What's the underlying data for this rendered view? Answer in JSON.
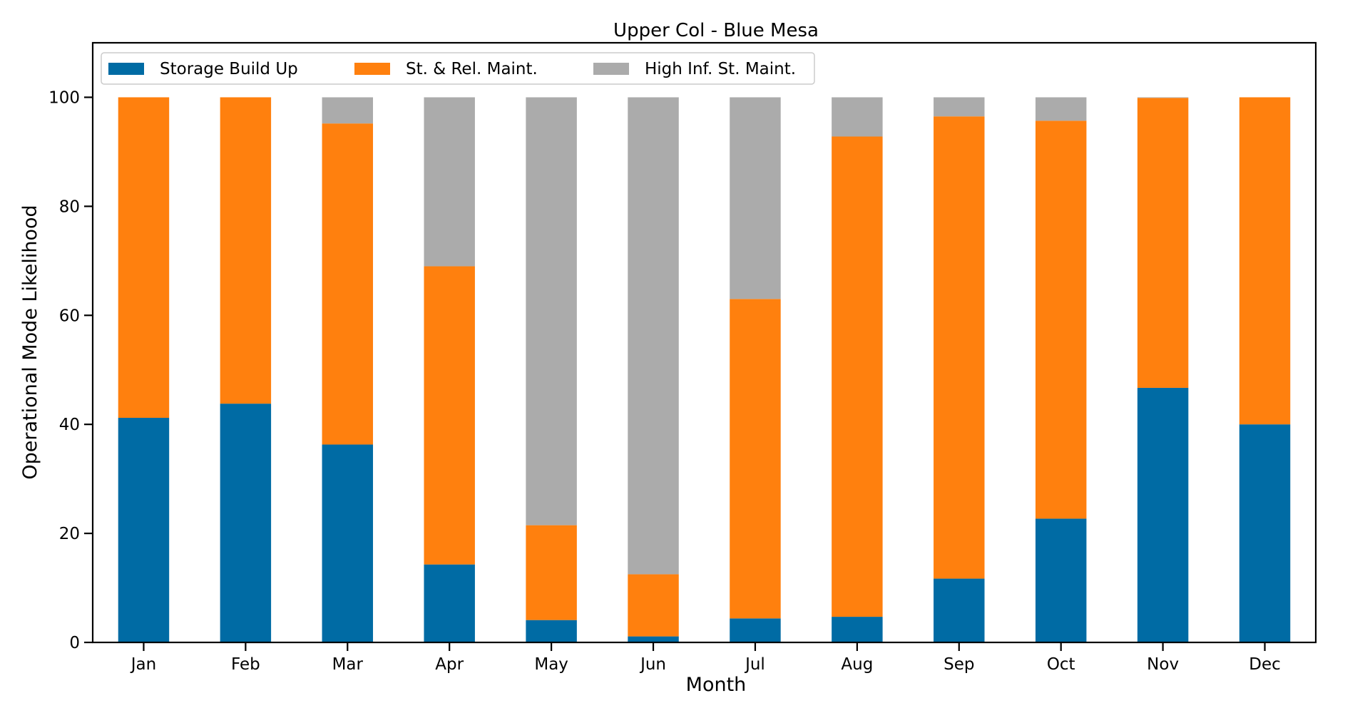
{
  "chart_data": {
    "type": "bar",
    "stacked": true,
    "title": "Upper Col - Blue Mesa",
    "xlabel": "Month",
    "ylabel": "Operational Mode Likelihood",
    "categories": [
      "Jan",
      "Feb",
      "Mar",
      "Apr",
      "May",
      "Jun",
      "Jul",
      "Aug",
      "Sep",
      "Oct",
      "Nov",
      "Dec"
    ],
    "ylim": [
      0,
      110
    ],
    "yticks": [
      0,
      20,
      40,
      60,
      80,
      100
    ],
    "grid": false,
    "legend_position": "top-left",
    "series": [
      {
        "name": "Storage Build Up",
        "color": "#006BA4",
        "values": [
          41.2,
          43.8,
          36.3,
          14.3,
          4.1,
          1.1,
          4.4,
          4.7,
          11.7,
          22.7,
          46.7,
          40.0
        ]
      },
      {
        "name": "St. & Rel. Maint.",
        "color": "#FF800E",
        "values": [
          58.8,
          56.2,
          58.9,
          54.7,
          17.4,
          11.4,
          58.6,
          88.1,
          84.8,
          73.0,
          53.2,
          60.0
        ]
      },
      {
        "name": "High Inf. St. Maint.",
        "color": "#ABABAB",
        "values": [
          0.0,
          0.0,
          4.8,
          31.0,
          78.5,
          87.5,
          37.0,
          7.2,
          3.5,
          4.3,
          0.1,
          0.0
        ]
      }
    ]
  }
}
